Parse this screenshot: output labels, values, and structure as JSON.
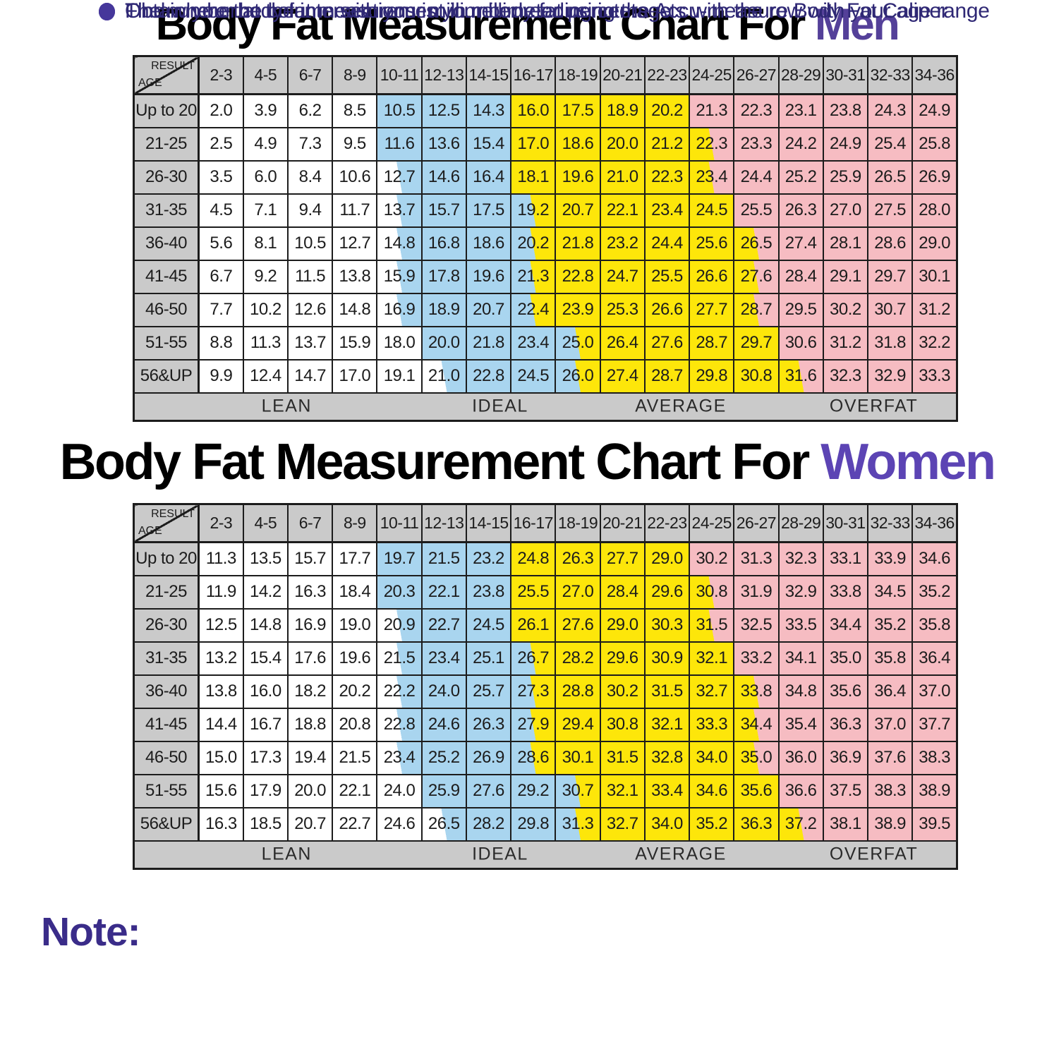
{
  "chart_data": [
    {
      "type": "table",
      "title_prefix": "Body Fat Measurement Chart For ",
      "title_accent": "Men",
      "corner": {
        "top": "RESULT",
        "bottom": "AGE"
      },
      "columns": [
        "2-3",
        "4-5",
        "6-7",
        "8-9",
        "10-11",
        "12-13",
        "14-15",
        "16-17",
        "18-19",
        "20-21",
        "22-23",
        "24-25",
        "26-27",
        "28-29",
        "30-31",
        "32-33",
        "34-36"
      ],
      "rows": [
        {
          "label": "Up to 20",
          "values": [
            "2.0",
            "3.9",
            "6.2",
            "8.5",
            "10.5",
            "12.5",
            "14.3",
            "16.0",
            "17.5",
            "18.9",
            "20.2",
            "21.3",
            "22.3",
            "23.1",
            "23.8",
            "24.3",
            "24.9"
          ]
        },
        {
          "label": "21-25",
          "values": [
            "2.5",
            "4.9",
            "7.3",
            "9.5",
            "11.6",
            "13.6",
            "15.4",
            "17.0",
            "18.6",
            "20.0",
            "21.2",
            "22.3",
            "23.3",
            "24.2",
            "24.9",
            "25.4",
            "25.8"
          ]
        },
        {
          "label": "26-30",
          "values": [
            "3.5",
            "6.0",
            "8.4",
            "10.6",
            "12.7",
            "14.6",
            "16.4",
            "18.1",
            "19.6",
            "21.0",
            "22.3",
            "23.4",
            "24.4",
            "25.2",
            "25.9",
            "26.5",
            "26.9"
          ]
        },
        {
          "label": "31-35",
          "values": [
            "4.5",
            "7.1",
            "9.4",
            "11.7",
            "13.7",
            "15.7",
            "17.5",
            "19.2",
            "20.7",
            "22.1",
            "23.4",
            "24.5",
            "25.5",
            "26.3",
            "27.0",
            "27.5",
            "28.0"
          ]
        },
        {
          "label": "36-40",
          "values": [
            "5.6",
            "8.1",
            "10.5",
            "12.7",
            "14.8",
            "16.8",
            "18.6",
            "20.2",
            "21.8",
            "23.2",
            "24.4",
            "25.6",
            "26.5",
            "27.4",
            "28.1",
            "28.6",
            "29.0"
          ]
        },
        {
          "label": "41-45",
          "values": [
            "6.7",
            "9.2",
            "11.5",
            "13.8",
            "15.9",
            "17.8",
            "19.6",
            "21.3",
            "22.8",
            "24.7",
            "25.5",
            "26.6",
            "27.6",
            "28.4",
            "29.1",
            "29.7",
            "30.1"
          ]
        },
        {
          "label": "46-50",
          "values": [
            "7.7",
            "10.2",
            "12.6",
            "14.8",
            "16.9",
            "18.9",
            "20.7",
            "22.4",
            "23.9",
            "25.3",
            "26.6",
            "27.7",
            "28.7",
            "29.5",
            "30.2",
            "30.7",
            "31.2"
          ]
        },
        {
          "label": "51-55",
          "values": [
            "8.8",
            "11.3",
            "13.7",
            "15.9",
            "18.0",
            "20.0",
            "21.8",
            "23.4",
            "25.0",
            "26.4",
            "27.6",
            "28.7",
            "29.7",
            "30.6",
            "31.2",
            "31.8",
            "32.2"
          ]
        },
        {
          "label": "56&UP",
          "values": [
            "9.9",
            "12.4",
            "14.7",
            "17.0",
            "19.1",
            "21.0",
            "22.8",
            "24.5",
            "26.0",
            "27.4",
            "28.7",
            "29.8",
            "30.8",
            "31.6",
            "32.3",
            "32.9",
            "33.3"
          ]
        }
      ],
      "band_labels": [
        "LEAN",
        "IDEAL",
        "AVERAGE",
        "OVERFAT"
      ]
    },
    {
      "type": "table",
      "title_prefix": "Body Fat Measurement Chart For ",
      "title_accent": "Women",
      "corner": {
        "top": "RESULT",
        "bottom": "AGE"
      },
      "columns": [
        "2-3",
        "4-5",
        "6-7",
        "8-9",
        "10-11",
        "12-13",
        "14-15",
        "16-17",
        "18-19",
        "20-21",
        "22-23",
        "24-25",
        "26-27",
        "28-29",
        "30-31",
        "32-33",
        "34-36"
      ],
      "rows": [
        {
          "label": "Up to 20",
          "values": [
            "11.3",
            "13.5",
            "15.7",
            "17.7",
            "19.7",
            "21.5",
            "23.2",
            "24.8",
            "26.3",
            "27.7",
            "29.0",
            "30.2",
            "31.3",
            "32.3",
            "33.1",
            "33.9",
            "34.6"
          ]
        },
        {
          "label": "21-25",
          "values": [
            "11.9",
            "14.2",
            "16.3",
            "18.4",
            "20.3",
            "22.1",
            "23.8",
            "25.5",
            "27.0",
            "28.4",
            "29.6",
            "30.8",
            "31.9",
            "32.9",
            "33.8",
            "34.5",
            "35.2"
          ]
        },
        {
          "label": "26-30",
          "values": [
            "12.5",
            "14.8",
            "16.9",
            "19.0",
            "20.9",
            "22.7",
            "24.5",
            "26.1",
            "27.6",
            "29.0",
            "30.3",
            "31.5",
            "32.5",
            "33.5",
            "34.4",
            "35.2",
            "35.8"
          ]
        },
        {
          "label": "31-35",
          "values": [
            "13.2",
            "15.4",
            "17.6",
            "19.6",
            "21.5",
            "23.4",
            "25.1",
            "26.7",
            "28.2",
            "29.6",
            "30.9",
            "32.1",
            "33.2",
            "34.1",
            "35.0",
            "35.8",
            "36.4"
          ]
        },
        {
          "label": "36-40",
          "values": [
            "13.8",
            "16.0",
            "18.2",
            "20.2",
            "22.2",
            "24.0",
            "25.7",
            "27.3",
            "28.8",
            "30.2",
            "31.5",
            "32.7",
            "33.8",
            "34.8",
            "35.6",
            "36.4",
            "37.0"
          ]
        },
        {
          "label": "41-45",
          "values": [
            "14.4",
            "16.7",
            "18.8",
            "20.8",
            "22.8",
            "24.6",
            "26.3",
            "27.9",
            "29.4",
            "30.8",
            "32.1",
            "33.3",
            "34.4",
            "35.4",
            "36.3",
            "37.0",
            "37.7"
          ]
        },
        {
          "label": "46-50",
          "values": [
            "15.0",
            "17.3",
            "19.4",
            "21.5",
            "23.4",
            "25.2",
            "26.9",
            "28.6",
            "30.1",
            "31.5",
            "32.8",
            "34.0",
            "35.0",
            "36.0",
            "36.9",
            "37.6",
            "38.3"
          ]
        },
        {
          "label": "51-55",
          "values": [
            "15.6",
            "17.9",
            "20.0",
            "22.1",
            "24.0",
            "25.9",
            "27.6",
            "29.2",
            "30.7",
            "32.1",
            "33.4",
            "34.6",
            "35.6",
            "36.6",
            "37.5",
            "38.3",
            "38.9"
          ]
        },
        {
          "label": "56&UP",
          "values": [
            "16.3",
            "18.5",
            "20.7",
            "22.7",
            "24.6",
            "26.5",
            "28.2",
            "29.8",
            "31.3",
            "32.7",
            "34.0",
            "35.2",
            "36.3",
            "37.2",
            "38.1",
            "38.9",
            "39.5"
          ]
        }
      ],
      "band_labels": [
        "LEAN",
        "IDEAL",
        "AVERAGE",
        "OVERFAT"
      ]
    }
  ],
  "band_map": {
    "legend": {
      "W": "LEAN",
      "B": "IDEAL",
      "Y": "AVERAGE",
      "P": "OVERFAT",
      "WB": "LEAN/IDEAL split",
      "BY": "IDEAL/AVERAGE split",
      "YP": "AVERAGE/OVERFAT split"
    },
    "codes": [
      [
        "W",
        "W",
        "W",
        "W",
        "B",
        "B",
        "B",
        "Y",
        "Y",
        "Y",
        "Y",
        "P",
        "P",
        "P",
        "P",
        "P",
        "P"
      ],
      [
        "W",
        "W",
        "W",
        "W",
        "B",
        "B",
        "B",
        "Y",
        "Y",
        "Y",
        "Y",
        "YP",
        "P",
        "P",
        "P",
        "P",
        "P"
      ],
      [
        "W",
        "W",
        "W",
        "W",
        "WB",
        "B",
        "B",
        "Y",
        "Y",
        "Y",
        "Y",
        "YP",
        "P",
        "P",
        "P",
        "P",
        "P"
      ],
      [
        "W",
        "W",
        "W",
        "W",
        "WB",
        "B",
        "B",
        "BY",
        "Y",
        "Y",
        "Y",
        "Y",
        "P",
        "P",
        "P",
        "P",
        "P"
      ],
      [
        "W",
        "W",
        "W",
        "W",
        "WB",
        "B",
        "B",
        "BY",
        "Y",
        "Y",
        "Y",
        "Y",
        "YP",
        "P",
        "P",
        "P",
        "P"
      ],
      [
        "W",
        "W",
        "W",
        "W",
        "WB",
        "B",
        "B",
        "BY",
        "Y",
        "Y",
        "Y",
        "Y",
        "YP",
        "P",
        "P",
        "P",
        "P"
      ],
      [
        "W",
        "W",
        "W",
        "W",
        "WB",
        "B",
        "B",
        "BY",
        "Y",
        "Y",
        "Y",
        "Y",
        "YP",
        "P",
        "P",
        "P",
        "P"
      ],
      [
        "W",
        "W",
        "W",
        "W",
        "W",
        "B",
        "B",
        "B",
        "BY",
        "Y",
        "Y",
        "Y",
        "Y",
        "P",
        "P",
        "P",
        "P"
      ],
      [
        "W",
        "W",
        "W",
        "W",
        "W",
        "WB",
        "B",
        "B",
        "BY",
        "Y",
        "Y",
        "Y",
        "Y",
        "YP",
        "P",
        "P",
        "P"
      ]
    ]
  },
  "colors": {
    "lean": "#ffffff",
    "ideal": "#a9d5ef",
    "average": "#fde60a",
    "overfat": "#f6bcc2",
    "header_gray": "#cacaca",
    "border": "#1c1c1c",
    "men_accent": "#544099",
    "women_accent": "#5c44b4",
    "note_head": "#3a2c89",
    "note_text": "#2f2875",
    "note_bullet": "#46379b"
  },
  "note": {
    "heading": "Note:",
    "bullets": [
      "Obtain your body fat measurement in millimeter using the Accu-measure Body Fat Caliper",
      "Find where the column with your millimeter reading intersects with the row with your age range",
      "The number at the intersections is your body fat percentage"
    ]
  }
}
